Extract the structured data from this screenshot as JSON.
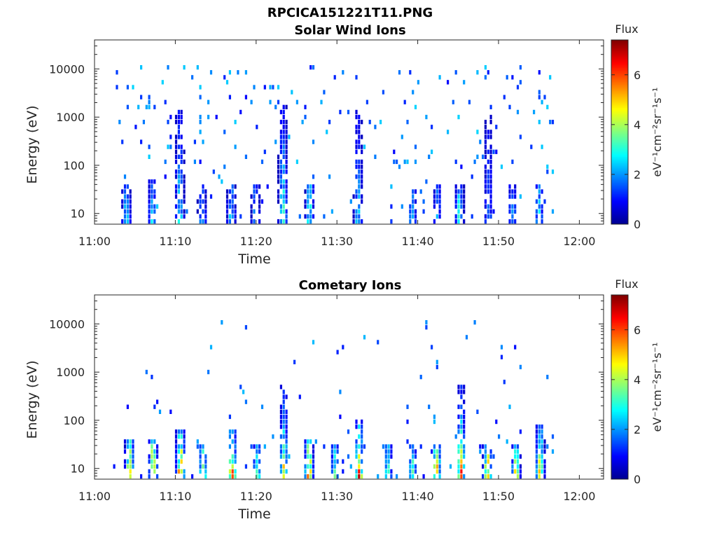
{
  "figure": {
    "filename_title": "RPCICA151221T11.PNG"
  },
  "colors": {
    "axis": "#262626",
    "background": "#ffffff",
    "colormap": [
      "#00008f",
      "#0000ff",
      "#0080ff",
      "#00ffff",
      "#80ff80",
      "#ffff00",
      "#ff8000",
      "#ff0000",
      "#800000"
    ]
  },
  "chart_data": [
    {
      "type": "heatmap",
      "title": "Solar Wind Ions",
      "xlabel": "Time",
      "ylabel": "Energy (eV)",
      "x_ticks": [
        "11:00",
        "11:10",
        "11:20",
        "11:30",
        "11:40",
        "11:50",
        "12:00"
      ],
      "x_range_minutes": [
        0,
        63
      ],
      "y_scale": "log",
      "y_ticks": [
        10,
        100,
        1000,
        10000
      ],
      "y_range": [
        6,
        40000
      ],
      "colorbar": {
        "title": "Flux",
        "unit": "eV⁻¹cm⁻²sr⁻¹s⁻¹",
        "range": [
          0,
          7.4
        ],
        "ticks": [
          0,
          2,
          4,
          6
        ]
      },
      "data_extent_minutes": [
        2.3,
        56.8
      ],
      "bursts": [
        {
          "t": 3.8,
          "max_flux": 3.0,
          "max_energy": 40
        },
        {
          "t": 7.0,
          "max_flux": 2.8,
          "max_energy": 50
        },
        {
          "t": 10.4,
          "max_flux": 3.5,
          "max_energy": 1500
        },
        {
          "t": 13.2,
          "max_flux": 2.5,
          "max_energy": 40
        },
        {
          "t": 16.8,
          "max_flux": 3.0,
          "max_energy": 40
        },
        {
          "t": 19.8,
          "max_flux": 2.5,
          "max_energy": 40
        },
        {
          "t": 23.2,
          "max_flux": 4.0,
          "max_energy": 2000
        },
        {
          "t": 26.5,
          "max_flux": 3.5,
          "max_energy": 40
        },
        {
          "t": 32.5,
          "max_flux": 3.0,
          "max_energy": 1500
        },
        {
          "t": 39.2,
          "max_flux": 3.0,
          "max_energy": 30
        },
        {
          "t": 42.3,
          "max_flux": 2.5,
          "max_energy": 40
        },
        {
          "t": 45.0,
          "max_flux": 3.5,
          "max_energy": 40
        },
        {
          "t": 48.6,
          "max_flux": 2.5,
          "max_energy": 1000
        },
        {
          "t": 51.6,
          "max_flux": 2.5,
          "max_energy": 40
        },
        {
          "t": 54.9,
          "max_flux": 3.0,
          "max_energy": 40
        }
      ]
    },
    {
      "type": "heatmap",
      "title": "Cometary Ions",
      "xlabel": "Time",
      "ylabel": "Energy (eV)",
      "x_ticks": [
        "11:00",
        "11:10",
        "11:20",
        "11:30",
        "11:40",
        "11:50",
        "12:00"
      ],
      "x_range_minutes": [
        0,
        63
      ],
      "y_scale": "log",
      "y_ticks": [
        10,
        100,
        1000,
        10000
      ],
      "y_range": [
        6,
        40000
      ],
      "colorbar": {
        "title": "Flux",
        "unit": "eV⁻¹cm⁻²sr⁻¹s⁻¹",
        "range": [
          0,
          7.4
        ],
        "ticks": [
          0,
          2,
          4,
          6
        ]
      },
      "data_extent_minutes": [
        2.3,
        56.8
      ],
      "bursts": [
        {
          "t": 4.2,
          "max_flux": 6.5,
          "max_energy": 40
        },
        {
          "t": 7.1,
          "max_flux": 6.8,
          "max_energy": 40
        },
        {
          "t": 10.5,
          "max_flux": 7.2,
          "max_energy": 60
        },
        {
          "t": 13.3,
          "max_flux": 5.0,
          "max_energy": 30
        },
        {
          "t": 16.9,
          "max_flux": 6.5,
          "max_energy": 60
        },
        {
          "t": 20.0,
          "max_flux": 4.0,
          "max_energy": 30
        },
        {
          "t": 23.3,
          "max_flux": 6.0,
          "max_energy": 500
        },
        {
          "t": 26.4,
          "max_flux": 6.8,
          "max_energy": 40
        },
        {
          "t": 29.6,
          "max_flux": 4.0,
          "max_energy": 30
        },
        {
          "t": 32.6,
          "max_flux": 6.8,
          "max_energy": 100
        },
        {
          "t": 36.2,
          "max_flux": 4.0,
          "max_energy": 30
        },
        {
          "t": 39.2,
          "max_flux": 4.5,
          "max_energy": 30
        },
        {
          "t": 42.2,
          "max_flux": 6.5,
          "max_energy": 30
        },
        {
          "t": 45.2,
          "max_flux": 7.0,
          "max_energy": 500
        },
        {
          "t": 48.5,
          "max_flux": 6.5,
          "max_energy": 30
        },
        {
          "t": 52.0,
          "max_flux": 5.5,
          "max_energy": 30
        },
        {
          "t": 55.0,
          "max_flux": 6.0,
          "max_energy": 80
        }
      ]
    }
  ]
}
